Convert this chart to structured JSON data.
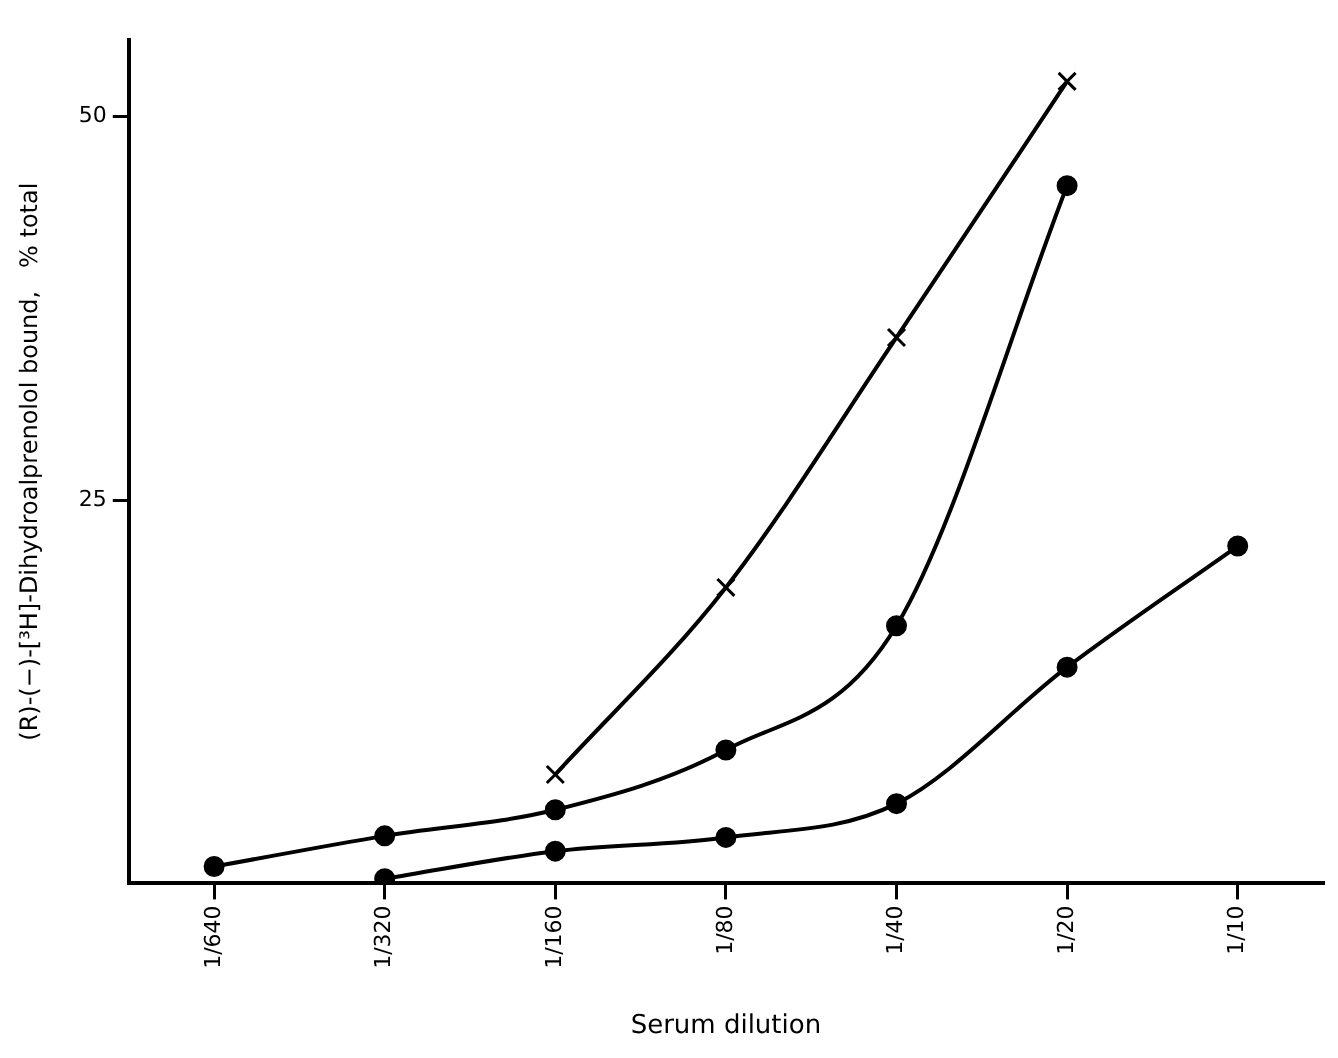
{
  "chart_data": {
    "type": "line",
    "xlabel": "Serum dilution",
    "ylabel": "(R)-(−)-[³H]-Dihydroalprenolol bound,   % total",
    "categories": [
      "1/640",
      "1/320",
      "1/160",
      "1/80",
      "1/40",
      "1/20",
      "1/10"
    ],
    "ylim": [
      0,
      55
    ],
    "yticks": [
      25,
      50
    ],
    "grid": false,
    "legend": false,
    "line_style": "solid",
    "series": [
      {
        "color": "#000000",
        "marker": "cross",
        "values": [
          null,
          null,
          7.1,
          19.3,
          35.6,
          52.3,
          null
        ]
      },
      {
        "color": "#000000",
        "marker": "circle",
        "values": [
          1.1,
          3.1,
          4.8,
          8.7,
          16.8,
          45.5,
          null
        ]
      },
      {
        "color": "#000000",
        "marker": "circle",
        "values": [
          null,
          0.3,
          2.1,
          3.0,
          5.2,
          14.1,
          22
        ]
      }
    ]
  }
}
